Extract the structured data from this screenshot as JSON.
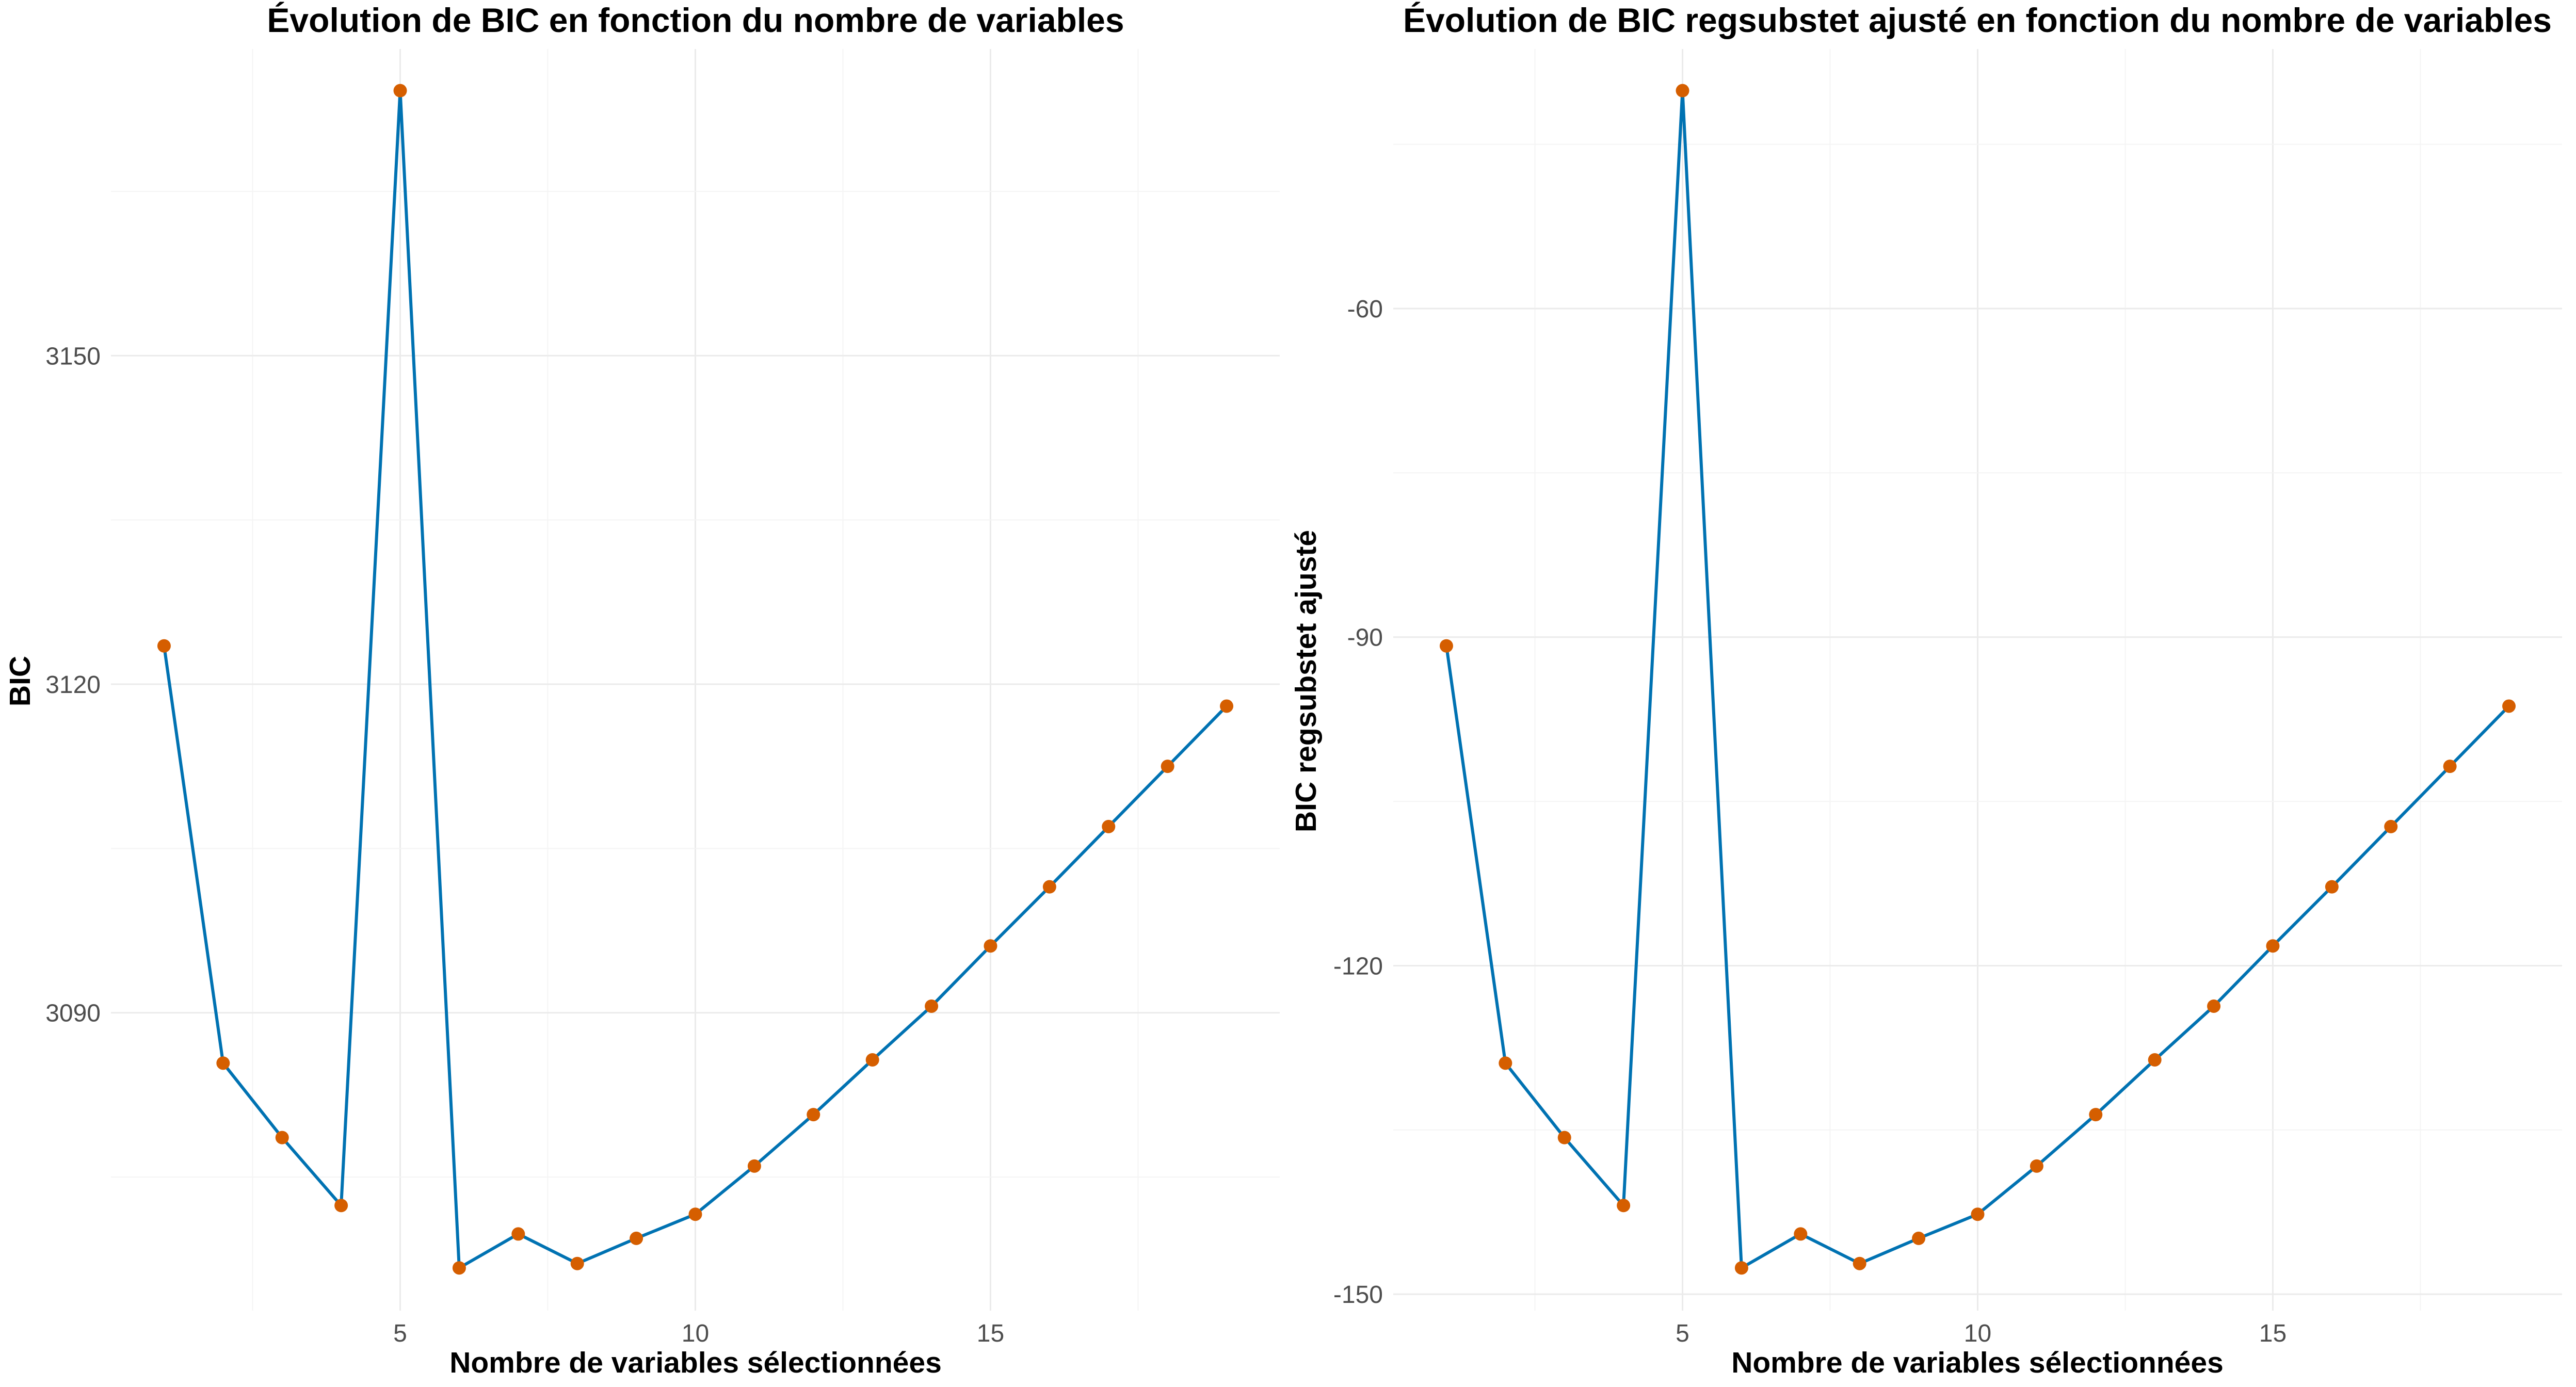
{
  "colors": {
    "line": "#0072B2",
    "point": "#D55E00",
    "grid": "#ebebeb"
  },
  "chart_data": [
    {
      "type": "line",
      "title": "Évolution de BIC en fonction du nombre de variables",
      "xlabel": "Nombre de variables sélectionnées",
      "ylabel": "BIC",
      "x": [
        1,
        2,
        3,
        4,
        5,
        6,
        7,
        8,
        9,
        10,
        11,
        12,
        13,
        14,
        15,
        16,
        17,
        18,
        19
      ],
      "y": [
        3123.5,
        3085.4,
        3078.6,
        3072.4,
        3174.2,
        3066.7,
        3069.8,
        3067.1,
        3069.4,
        3071.6,
        3076.0,
        3080.7,
        3085.7,
        3090.6,
        3096.1,
        3101.5,
        3107.0,
        3112.5,
        3118.0
      ],
      "xlim": [
        0.1,
        19.9
      ],
      "ylim": [
        3062.8,
        3178.0
      ],
      "xticks": [
        5,
        10,
        15
      ],
      "yticks": [
        3090,
        3120,
        3150
      ],
      "grid": true
    },
    {
      "type": "line",
      "title": "Évolution de BIC regsubstet ajusté en fonction du nombre de variables",
      "xlabel": "Nombre de variables sélectionnées",
      "ylabel": "BIC regsubstet ajusté",
      "x": [
        1,
        2,
        3,
        4,
        5,
        6,
        7,
        8,
        9,
        10,
        11,
        12,
        13,
        14,
        15,
        16,
        17,
        18,
        19
      ],
      "y": [
        -90.8,
        -128.9,
        -135.7,
        -141.9,
        -40.1,
        -147.6,
        -144.5,
        -147.2,
        -144.9,
        -142.7,
        -138.3,
        -133.6,
        -128.6,
        -123.7,
        -118.2,
        -112.8,
        -107.3,
        -101.8,
        -96.3
      ],
      "xlim": [
        0.1,
        19.9
      ],
      "ylim": [
        -151.5,
        -36.3
      ],
      "xticks": [
        5,
        10,
        15
      ],
      "yticks": [
        -150,
        -120,
        -90,
        -60
      ],
      "grid": true
    }
  ]
}
